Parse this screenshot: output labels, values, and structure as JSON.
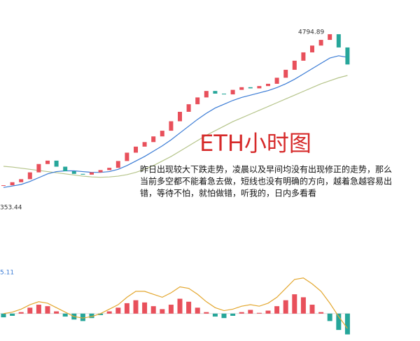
{
  "chart_data": {
    "type": "candlestick",
    "title": "ETH小时图",
    "annotation_lines": [
      "昨日出现较大下跌走势，凌晨以及早间均没有出现修正的走势，那么",
      "当前多空都不能着急去做，短线也没有明确的方向，越着急越容易出",
      "错，等待不怕，就怕做错，听我的，日内多看看"
    ],
    "high_label": "4794.89",
    "low_label": "353.44",
    "indicator_label": "5.11",
    "ylim": [
      4330,
      4810
    ],
    "up_color": "#e8505b",
    "down_color": "#26a69a",
    "closes": [
      4376,
      4384,
      4392,
      4410,
      4432,
      4441,
      4425,
      4413,
      4406,
      4404,
      4410,
      4416,
      4422,
      4440,
      4462,
      4478,
      4490,
      4505,
      4520,
      4545,
      4570,
      4590,
      4608,
      4625,
      4618,
      4616,
      4628,
      4635,
      4632,
      4638,
      4644,
      4660,
      4681,
      4705,
      4727,
      4745,
      4760,
      4775,
      4740,
      4695
    ],
    "series": [
      {
        "color": "#3a7bd5",
        "values": [
          4370,
          4374,
          4378,
          4386,
          4396,
          4406,
          4412,
          4414,
          4414,
          4412,
          4410,
          4410,
          4412,
          4418,
          4428,
          4440,
          4452,
          4466,
          4480,
          4496,
          4514,
          4532,
          4550,
          4566,
          4580,
          4590,
          4600,
          4608,
          4614,
          4620,
          4626,
          4634,
          4644,
          4656,
          4670,
          4684,
          4698,
          4712,
          4718,
          4714
        ]
      },
      {
        "color": "#b5c48a",
        "values": [
          4426,
          4424,
          4421,
          4418,
          4415,
          4412,
          4409,
          4406,
          4403,
          4400,
          4398,
          4397,
          4398,
          4400,
          4404,
          4410,
          4418,
          4428,
          4440,
          4452,
          4466,
          4480,
          4494,
          4508,
          4520,
          4532,
          4544,
          4554,
          4564,
          4574,
          4584,
          4594,
          4604,
          4614,
          4624,
          4634,
          4644,
          4652,
          4660,
          4666
        ]
      }
    ],
    "macd": {
      "ylim": [
        -35,
        60
      ],
      "histogram": [
        -5,
        -3,
        2,
        8,
        12,
        10,
        3,
        -4,
        -8,
        -10,
        -6,
        -2,
        3,
        8,
        14,
        18,
        15,
        10,
        6,
        12,
        20,
        16,
        8,
        2,
        -4,
        -6,
        -3,
        2,
        5,
        1,
        4,
        10,
        18,
        26,
        22,
        12,
        2,
        -10,
        -22,
        -28
      ],
      "line_color": "#e3a72f",
      "line": [
        0,
        2,
        6,
        12,
        16,
        14,
        8,
        2,
        -4,
        -6,
        -4,
        0,
        6,
        12,
        22,
        30,
        30,
        26,
        22,
        28,
        36,
        34,
        26,
        16,
        8,
        4,
        6,
        10,
        12,
        10,
        14,
        22,
        34,
        46,
        48,
        40,
        30,
        14,
        -4,
        -20
      ]
    }
  }
}
